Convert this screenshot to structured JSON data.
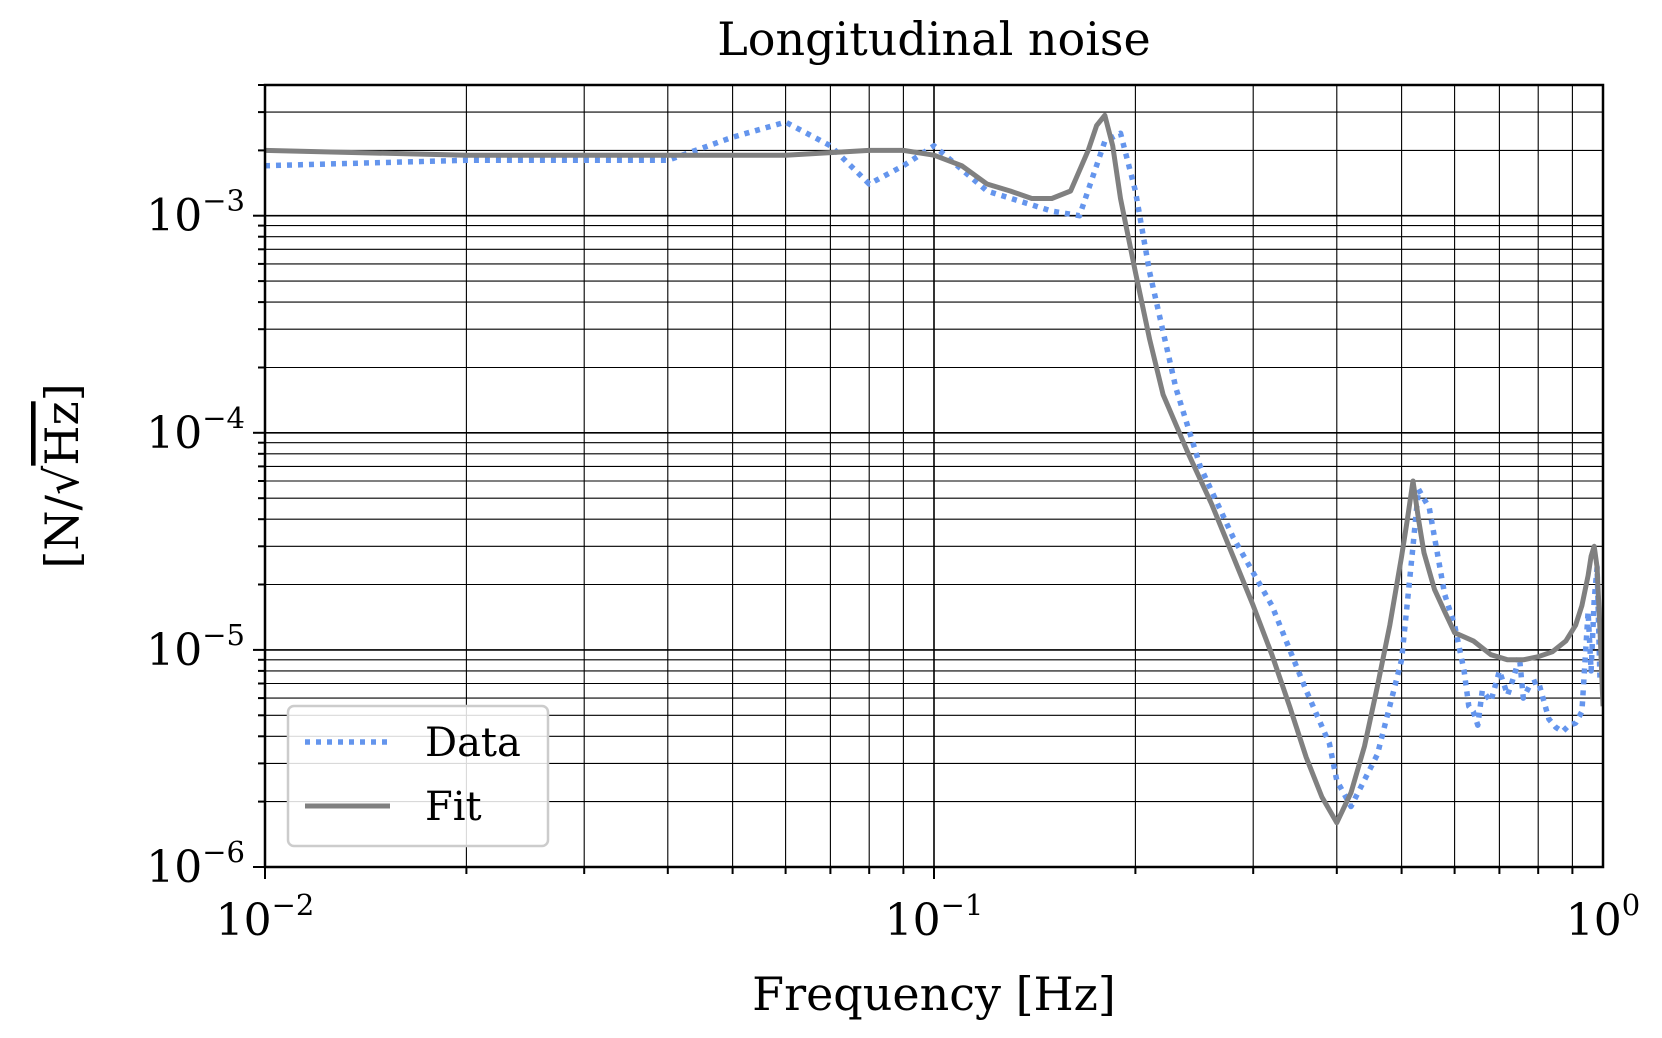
{
  "chart_data": {
    "type": "line",
    "title": "Longitudinal noise",
    "xlabel": "Frequency [Hz]",
    "ylabel_prefix": "[N/",
    "ylabel_radical": "√",
    "ylabel_radicand": "Hz",
    "ylabel_suffix": "]",
    "xscale": "log",
    "yscale": "log",
    "xlim": [
      0.01,
      1
    ],
    "ylim": [
      1e-06,
      0.004
    ],
    "grid": "major and minor",
    "legend_position": "lower-left",
    "x_ticks": [
      {
        "value": 0.01,
        "base": "10",
        "exp": "−2"
      },
      {
        "value": 0.1,
        "base": "10",
        "exp": "−1"
      },
      {
        "value": 1,
        "base": "10",
        "exp": "0"
      }
    ],
    "y_ticks": [
      {
        "value": 1e-06,
        "base": "10",
        "exp": "−6"
      },
      {
        "value": 1e-05,
        "base": "10",
        "exp": "−5"
      },
      {
        "value": 0.0001,
        "base": "10",
        "exp": "−4"
      },
      {
        "value": 0.001,
        "base": "10",
        "exp": "−3"
      }
    ],
    "series": [
      {
        "name": "Data",
        "style": "dotted",
        "color": "#6495ED",
        "x": [
          0.01,
          0.02,
          0.04,
          0.05,
          0.06,
          0.07,
          0.08,
          0.09,
          0.1,
          0.12,
          0.15,
          0.165,
          0.18,
          0.19,
          0.2,
          0.21,
          0.23,
          0.25,
          0.28,
          0.32,
          0.36,
          0.39,
          0.4,
          0.42,
          0.46,
          0.5,
          0.52,
          0.53,
          0.55,
          0.58,
          0.6,
          0.62,
          0.63,
          0.64,
          0.65,
          0.66,
          0.68,
          0.7,
          0.72,
          0.73,
          0.74,
          0.75,
          0.76,
          0.78,
          0.8,
          0.82,
          0.83,
          0.85,
          0.87,
          0.89,
          0.91,
          0.93,
          0.95,
          0.96,
          0.97,
          0.98,
          0.99,
          1.0
        ],
        "y": [
          0.0017,
          0.0018,
          0.0018,
          0.0023,
          0.0027,
          0.0021,
          0.0014,
          0.0017,
          0.0021,
          0.0013,
          0.00105,
          0.001,
          0.0022,
          0.0024,
          0.0013,
          0.00055,
          0.00016,
          7e-05,
          3.3e-05,
          1.6e-05,
          6.5e-06,
          3.7e-06,
          2.5e-06,
          1.9e-06,
          3.3e-06,
          9e-06,
          3e-05,
          5.5e-05,
          4.5e-05,
          1.8e-05,
          1.3e-05,
          8e-06,
          5.5e-06,
          5.2e-06,
          4.5e-06,
          6.5e-06,
          5.8e-06,
          8e-06,
          6.2e-06,
          7e-06,
          8e-06,
          9.3e-06,
          6e-06,
          7e-06,
          7.2e-06,
          5.5e-06,
          4.8e-06,
          4.4e-06,
          4.2e-06,
          4.5e-06,
          4.6e-06,
          5.2e-06,
          1.5e-05,
          8e-06,
          1.7e-05,
          2.4e-05,
          7e-06,
          7e-06
        ]
      },
      {
        "name": "Fit",
        "style": "solid",
        "color": "#808080",
        "x": [
          0.01,
          0.02,
          0.04,
          0.06,
          0.08,
          0.09,
          0.1,
          0.11,
          0.12,
          0.13,
          0.14,
          0.15,
          0.16,
          0.17,
          0.175,
          0.18,
          0.185,
          0.19,
          0.2,
          0.21,
          0.22,
          0.24,
          0.26,
          0.28,
          0.3,
          0.32,
          0.34,
          0.36,
          0.38,
          0.4,
          0.42,
          0.44,
          0.46,
          0.48,
          0.5,
          0.51,
          0.52,
          0.53,
          0.54,
          0.56,
          0.58,
          0.6,
          0.64,
          0.68,
          0.72,
          0.76,
          0.8,
          0.84,
          0.88,
          0.91,
          0.93,
          0.95,
          0.96,
          0.97,
          0.98,
          0.99,
          1.0
        ],
        "y": [
          0.002,
          0.0019,
          0.0019,
          0.0019,
          0.002,
          0.002,
          0.0019,
          0.0017,
          0.0014,
          0.0013,
          0.0012,
          0.0012,
          0.0013,
          0.002,
          0.0026,
          0.0029,
          0.0021,
          0.0012,
          0.00055,
          0.00027,
          0.00015,
          8e-05,
          4.7e-05,
          2.7e-05,
          1.6e-05,
          9.5e-06,
          5.5e-06,
          3.2e-06,
          2.1e-06,
          1.6e-06,
          2.2e-06,
          3.6e-06,
          6.8e-06,
          1.3e-05,
          2.7e-05,
          4e-05,
          6e-05,
          4e-05,
          2.8e-05,
          1.9e-05,
          1.5e-05,
          1.2e-05,
          1.1e-05,
          9.5e-06,
          9e-06,
          9e-06,
          9.3e-06,
          9.8e-06,
          1.1e-05,
          1.3e-05,
          1.6e-05,
          2.2e-05,
          2.7e-05,
          3e-05,
          2.4e-05,
          1.2e-05,
          5.5e-06
        ]
      }
    ]
  }
}
